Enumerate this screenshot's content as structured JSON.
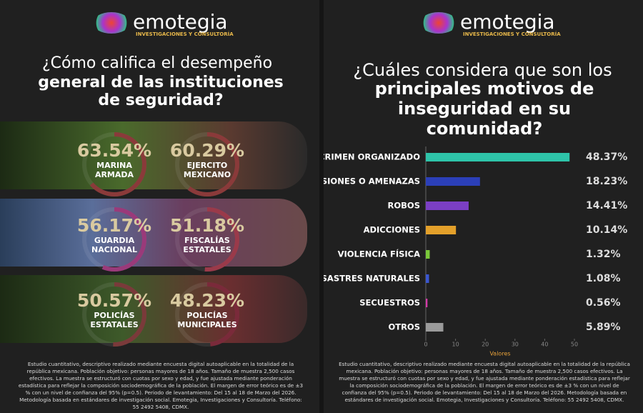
{
  "brand": {
    "name": "emotegia",
    "tagline": "INVESTIGACIONES Y CONSULTORÍA"
  },
  "footer": "Estudio cuantitativo, descriptivo realizado mediante encuesta digital autoaplicable en la totalidad de la república mexicana. Población objetivo: personas mayores de 18 años. Tamaño de muestra 2,500 casos efectivos. La muestra se estructuró con cuotas por sexo y edad, y fue ajustada mediante ponderación estadística para reflejar la composición sociodemográfica de la población. El margen de error teórico es de ±3 % con un nivel de confianza del 95% (p=0.5). Periodo de levantamiento:  Del 15 al 18 de Marzo del 2026. Metodología basada en estándares de investigación social. Emotegia, Investigaciones y Consultoría. Teléfono: 55 2492 5408, CDMX.",
  "left": {
    "title_light": "¿Cómo califica el desempeño",
    "title_bold": "general de las instituciones de seguridad?",
    "labels": [
      "MARINA ARMADA",
      "EJERCITO MEXICANO",
      "GUARDIA NACIONAL",
      "FISCALÍAS ESTATALES",
      "POLICÍAS ESTATALES",
      "POLICÍAS MUNICIPALES"
    ],
    "values": [
      63.54,
      60.29,
      56.17,
      51.18,
      50.57,
      48.23
    ],
    "value_labels": [
      "63.54%",
      "60.29%",
      "56.17%",
      "51.18%",
      "50.57%",
      "48.23%"
    ]
  },
  "chart_data": {
    "type": "bar",
    "orientation": "horizontal",
    "title_light": "¿Cuáles considera que son los",
    "title_bold": "principales motivos de inseguridad en su comunidad?",
    "categories": [
      "CRIMEN ORGANIZADO",
      "EXTORSIONES O AMENAZAS",
      "ROBOS",
      "ADICCIONES",
      "VIOLENCIA FÍSICA",
      "DESASTRES NATURALES",
      "SECUESTROS",
      "OTROS"
    ],
    "values": [
      48.37,
      18.23,
      14.41,
      10.14,
      1.32,
      1.08,
      0.56,
      5.89
    ],
    "value_labels": [
      "48.37%",
      "18.23%",
      "14.41%",
      "10.14%",
      "1.32%",
      "1.08%",
      "0.56%",
      "5.89%"
    ],
    "colors": [
      "#2ec4a9",
      "#2b3fb8",
      "#7b3fc4",
      "#e3a02a",
      "#7ac83a",
      "#3a56d0",
      "#d43aa8",
      "#9a9a9a"
    ],
    "xlim": [
      0,
      50
    ],
    "xticks": [
      0,
      10,
      20,
      30,
      40,
      50
    ],
    "xlabel": "Valores"
  }
}
